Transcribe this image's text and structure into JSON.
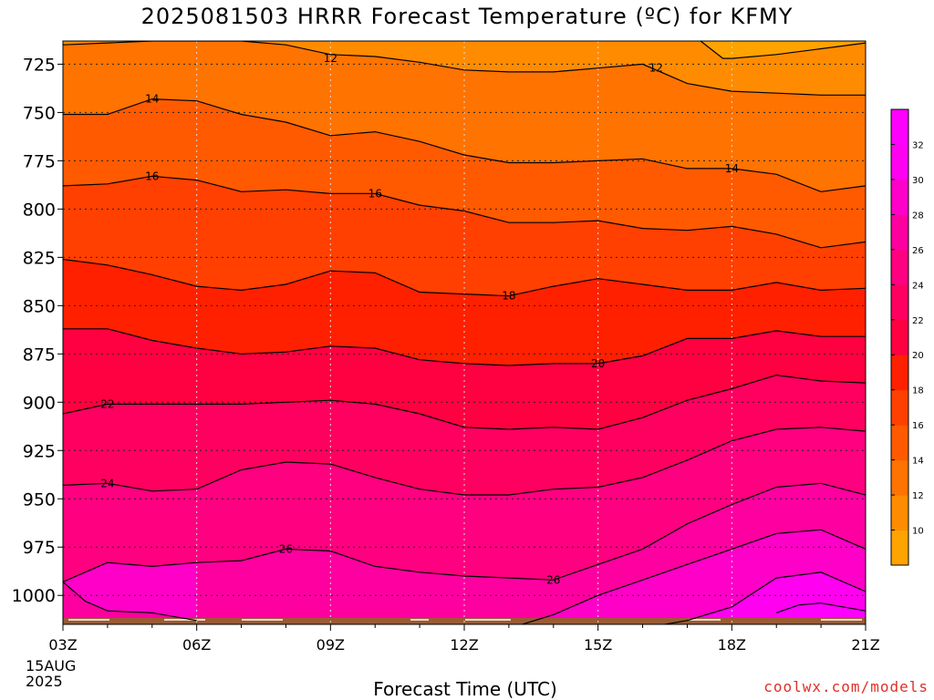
{
  "chart_data": {
    "type": "contour",
    "title": "2025081503 HRRR Forecast Temperature (ºC) for KFMY",
    "xlabel": "Forecast Time (UTC)",
    "ylabel": "",
    "x_hours": [
      3,
      4,
      5,
      6,
      7,
      8,
      9,
      10,
      11,
      12,
      13,
      14,
      15,
      16,
      17,
      18,
      19,
      20,
      21
    ],
    "x_ticks": [
      "03Z",
      "06Z",
      "09Z",
      "12Z",
      "15Z",
      "18Z",
      "21Z"
    ],
    "x_tick_hours": [
      3,
      6,
      9,
      12,
      15,
      18,
      21
    ],
    "start_date_line1": "15AUG",
    "start_date_line2": "2025",
    "y_ticks": [
      725,
      750,
      775,
      800,
      825,
      850,
      875,
      900,
      925,
      950,
      975,
      1000
    ],
    "ylim": [
      1015,
      713
    ],
    "contour_levels": [
      10,
      12,
      14,
      16,
      18,
      20,
      22,
      24,
      26,
      28,
      30,
      32
    ],
    "contours": [
      {
        "level": 12,
        "label": "12",
        "points": [
          [
            3,
            715
          ],
          [
            4,
            714
          ],
          [
            5,
            713
          ],
          [
            7,
            713
          ],
          [
            8,
            715
          ],
          [
            9,
            720
          ],
          [
            10,
            721
          ],
          [
            11,
            724
          ],
          [
            12,
            728
          ],
          [
            13,
            729
          ],
          [
            14,
            729
          ],
          [
            15,
            727
          ],
          [
            16,
            725
          ],
          [
            17,
            735
          ],
          [
            18,
            739
          ],
          [
            19,
            740
          ],
          [
            20,
            741
          ],
          [
            21,
            741
          ]
        ]
      },
      {
        "level": 12,
        "label": "",
        "points": [
          [
            17.3,
            713
          ],
          [
            17.8,
            722
          ],
          [
            18,
            722
          ],
          [
            19,
            720
          ],
          [
            20,
            717
          ],
          [
            21,
            714
          ]
        ]
      },
      {
        "level": 14,
        "label": "14",
        "points": [
          [
            3,
            751
          ],
          [
            4,
            751
          ],
          [
            5,
            743
          ],
          [
            6,
            744
          ],
          [
            7,
            751
          ],
          [
            8,
            755
          ],
          [
            9,
            762
          ],
          [
            10,
            760
          ],
          [
            11,
            765
          ],
          [
            12,
            772
          ],
          [
            13,
            776
          ],
          [
            14,
            776
          ],
          [
            15,
            775
          ],
          [
            16,
            774
          ],
          [
            17,
            779
          ],
          [
            18,
            779
          ],
          [
            19,
            782
          ],
          [
            20,
            791
          ],
          [
            21,
            788
          ]
        ]
      },
      {
        "level": 16,
        "label": "16",
        "points": [
          [
            3,
            788
          ],
          [
            4,
            787
          ],
          [
            5,
            783
          ],
          [
            6,
            785
          ],
          [
            7,
            791
          ],
          [
            8,
            790
          ],
          [
            9,
            792
          ],
          [
            10,
            792
          ],
          [
            11,
            798
          ],
          [
            12,
            801
          ],
          [
            13,
            807
          ],
          [
            14,
            807
          ],
          [
            15,
            806
          ],
          [
            16,
            810
          ],
          [
            17,
            811
          ],
          [
            18,
            809
          ],
          [
            19,
            813
          ],
          [
            20,
            820
          ],
          [
            21,
            817
          ]
        ]
      },
      {
        "level": 18,
        "label": "18",
        "points": [
          [
            3,
            826
          ],
          [
            4,
            829
          ],
          [
            5,
            834
          ],
          [
            6,
            840
          ],
          [
            7,
            842
          ],
          [
            8,
            839
          ],
          [
            9,
            832
          ],
          [
            10,
            833
          ],
          [
            11,
            843
          ],
          [
            12,
            844
          ],
          [
            13,
            845
          ],
          [
            14,
            840
          ],
          [
            15,
            836
          ],
          [
            16,
            839
          ],
          [
            17,
            842
          ],
          [
            18,
            842
          ],
          [
            19,
            838
          ],
          [
            20,
            842
          ],
          [
            21,
            841
          ]
        ]
      },
      {
        "level": 20,
        "label": "20",
        "points": [
          [
            3,
            862
          ],
          [
            4,
            862
          ],
          [
            5,
            868
          ],
          [
            6,
            872
          ],
          [
            7,
            875
          ],
          [
            8,
            874
          ],
          [
            9,
            871
          ],
          [
            10,
            872
          ],
          [
            11,
            878
          ],
          [
            12,
            880
          ],
          [
            13,
            881
          ],
          [
            14,
            880
          ],
          [
            15,
            880
          ],
          [
            16,
            876
          ],
          [
            17,
            867
          ],
          [
            18,
            867
          ],
          [
            19,
            863
          ],
          [
            20,
            866
          ],
          [
            21,
            866
          ]
        ]
      },
      {
        "level": 22,
        "label": "22",
        "points": [
          [
            3,
            906
          ],
          [
            4,
            901
          ],
          [
            5,
            901
          ],
          [
            6,
            901
          ],
          [
            7,
            901
          ],
          [
            8,
            900
          ],
          [
            9,
            899
          ],
          [
            10,
            901
          ],
          [
            11,
            906
          ],
          [
            12,
            913
          ],
          [
            13,
            914
          ],
          [
            14,
            913
          ],
          [
            15,
            914
          ],
          [
            16,
            908
          ],
          [
            17,
            899
          ],
          [
            18,
            893
          ],
          [
            19,
            886
          ],
          [
            20,
            889
          ],
          [
            21,
            890
          ]
        ]
      },
      {
        "level": 24,
        "label": "24",
        "points": [
          [
            3,
            943
          ],
          [
            4,
            942
          ],
          [
            5,
            946
          ],
          [
            6,
            945
          ],
          [
            7,
            935
          ],
          [
            8,
            931
          ],
          [
            9,
            932
          ],
          [
            10,
            939
          ],
          [
            11,
            945
          ],
          [
            12,
            948
          ],
          [
            13,
            948
          ],
          [
            14,
            945
          ],
          [
            15,
            944
          ],
          [
            16,
            939
          ],
          [
            17,
            930
          ],
          [
            18,
            920
          ],
          [
            19,
            914
          ],
          [
            20,
            913
          ],
          [
            21,
            915
          ]
        ]
      },
      {
        "level": 26,
        "label": "26",
        "points": [
          [
            3,
            993
          ],
          [
            4,
            983
          ],
          [
            5,
            985
          ],
          [
            6,
            983
          ],
          [
            7,
            982
          ],
          [
            8,
            976
          ],
          [
            9,
            977
          ],
          [
            10,
            985
          ],
          [
            11,
            988
          ],
          [
            12,
            990
          ],
          [
            13,
            991
          ],
          [
            14,
            992
          ],
          [
            15,
            984
          ],
          [
            16,
            976
          ],
          [
            17,
            963
          ],
          [
            18,
            953
          ],
          [
            19,
            944
          ],
          [
            20,
            942
          ],
          [
            21,
            948
          ]
        ]
      },
      {
        "level": 26,
        "label": "",
        "points": [
          [
            3,
            993
          ],
          [
            3.5,
            1003
          ],
          [
            4,
            1008
          ],
          [
            5,
            1009
          ],
          [
            6,
            1013
          ]
        ]
      },
      {
        "level": 28,
        "label": "",
        "points": [
          [
            13.3,
            1015
          ],
          [
            14,
            1010
          ],
          [
            15,
            1000
          ],
          [
            16,
            992
          ],
          [
            17,
            984
          ],
          [
            18,
            976
          ],
          [
            19,
            968
          ],
          [
            20,
            966
          ],
          [
            21,
            976
          ]
        ]
      },
      {
        "level": 30,
        "label": "",
        "points": [
          [
            16.5,
            1015
          ],
          [
            17,
            1013
          ],
          [
            18,
            1006
          ],
          [
            19,
            991
          ],
          [
            20,
            988
          ],
          [
            21,
            998
          ]
        ]
      },
      {
        "level": 32,
        "label": "",
        "points": [
          [
            19,
            1009
          ],
          [
            19.5,
            1005
          ],
          [
            20,
            1004
          ],
          [
            21,
            1008
          ]
        ]
      }
    ],
    "label_positions": [
      {
        "text": "12",
        "hour": 9,
        "p": 722
      },
      {
        "text": "12",
        "hour": 16.3,
        "p": 727
      },
      {
        "text": "14",
        "hour": 5,
        "p": 743
      },
      {
        "text": "14",
        "hour": 18,
        "p": 779
      },
      {
        "text": "16",
        "hour": 5,
        "p": 783
      },
      {
        "text": "16",
        "hour": 10,
        "p": 792
      },
      {
        "text": "18",
        "hour": 13,
        "p": 845
      },
      {
        "text": "20",
        "hour": 15,
        "p": 880
      },
      {
        "text": "22",
        "hour": 4,
        "p": 901
      },
      {
        "text": "24",
        "hour": 4,
        "p": 942
      },
      {
        "text": "26",
        "hour": 8,
        "p": 976
      },
      {
        "text": "26",
        "hour": 14,
        "p": 992
      }
    ],
    "colorbar": {
      "labels": [
        "10",
        "12",
        "14",
        "16",
        "18",
        "20",
        "22",
        "24",
        "26",
        "28",
        "30",
        "32"
      ],
      "colors": [
        "#ffa300",
        "#ff8c00",
        "#ff7300",
        "#ff5a00",
        "#ff4000",
        "#ff2000",
        "#ff0040",
        "#ff0060",
        "#ff0080",
        "#ff00a0",
        "#ff00c8",
        "#ff00f0",
        "#ff00ff"
      ]
    },
    "ground_color": "#9b5a34"
  },
  "footer": {
    "credit": "coolwx.com/models"
  }
}
